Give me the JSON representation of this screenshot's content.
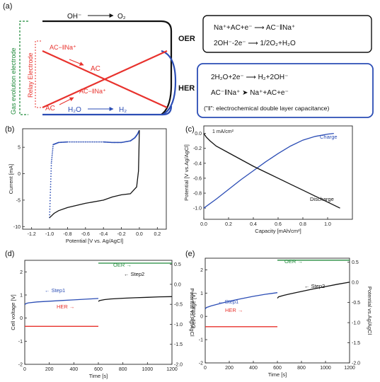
{
  "figure": {
    "panel_labels": [
      "(a)",
      "(b)",
      "(c)",
      "(d)",
      "(e)"
    ]
  },
  "schematic": {
    "gas_evolution_label": "Gas evolution electrode",
    "relay_label": "Relay Electrode",
    "top_reaction_left": "OH⁻",
    "top_reaction_right": "O₂",
    "ac_na_label": "AC−‖Na⁺",
    "ac_label_upper": "AC",
    "ac_label_lower": "AC",
    "ac_na_label_lower": "AC−‖Na⁺",
    "water_label": "H₂O",
    "h2_label": "H₂",
    "oer_label": "OER",
    "her_label": "HER",
    "oer_eq1": "Na⁺+AC+e⁻ ⟶ AC⁻‖Na⁺",
    "oer_eq2": "2OH⁻-2e⁻  ⟶  1/2O₂+H₂O",
    "her_eq1": "2H₂O+2e⁻  ⟶  H₂+2OH⁻",
    "her_eq2": "AC⁻‖Na⁺   ➤   Na⁺+AC+e⁻",
    "her_note": "(\"‖\": electrochemical double layer capacitance)",
    "colors": {
      "red": "#e8322d",
      "blue": "#2b4db5",
      "green": "#1f8a3a",
      "black": "#111111"
    }
  },
  "chart_data": [
    {
      "panel": "b",
      "type": "line",
      "xlabel": "Potential [V vs. Ag/AgCl]",
      "ylabel": "Current [mA]",
      "xlim": [
        -1.3,
        0.3
      ],
      "ylim": [
        -10.5,
        8.5
      ],
      "xticks": [
        "-1.2",
        "-1.0",
        "-0.8",
        "-0.6",
        "-0.4",
        "-0.2",
        "0.0",
        "0.2"
      ],
      "xtick_values": [
        -1.2,
        -1.0,
        -0.8,
        -0.6,
        -0.4,
        -0.2,
        0.0,
        0.2
      ],
      "yticks": [
        "-10",
        "-5",
        "0",
        "5"
      ],
      "ytick_values": [
        -10,
        -5,
        0,
        5
      ],
      "series": [
        {
          "color": "#2b4db5",
          "dotted": true,
          "x": [
            -1.0,
            -0.99,
            -0.98,
            -0.96,
            -0.9,
            -0.8,
            -0.6,
            -0.4,
            -0.3,
            -0.2,
            -0.1,
            -0.05,
            -0.02,
            0.0
          ],
          "y": [
            -8.3,
            -3.0,
            2.0,
            5.5,
            5.9,
            6.0,
            6.0,
            6.0,
            5.9,
            5.9,
            6.2,
            6.8,
            7.5,
            8.2
          ]
        },
        {
          "color": "#111111",
          "dotted": false,
          "x": [
            0.0,
            -0.005,
            -0.01,
            -0.03,
            -0.1,
            -0.2,
            -0.3,
            -0.4,
            -0.6,
            -0.8,
            -0.9,
            -0.95,
            -0.98,
            -1.0
          ],
          "y": [
            8.2,
            4.0,
            0.5,
            -2.5,
            -3.8,
            -4.0,
            -4.4,
            -5.0,
            -5.6,
            -6.4,
            -7.0,
            -7.5,
            -8.0,
            -8.3
          ]
        }
      ]
    },
    {
      "panel": "c",
      "type": "line",
      "annotation": "1 mA/cm²",
      "xlabel": "Capacity [mAh/cm²]",
      "ylabel": "Potential [V vs.Ag/AgCl]",
      "xlim": [
        0.0,
        1.2
      ],
      "ylim": [
        -1.15,
        0.1
      ],
      "xticks": [
        "0.0",
        "0.2",
        "0.4",
        "0.6",
        "0.8",
        "1.0"
      ],
      "xtick_values": [
        0.0,
        0.2,
        0.4,
        0.6,
        0.8,
        1.0
      ],
      "yticks": [
        "-1.0",
        "-0.8",
        "-0.6",
        "-0.4",
        "-0.2",
        "0.0"
      ],
      "ytick_values": [
        -1.0,
        -0.8,
        -0.6,
        -0.4,
        -0.2,
        0.0
      ],
      "series": [
        {
          "name": "Charge",
          "color": "#2b4db5",
          "x": [
            0.0,
            0.1,
            0.2,
            0.3,
            0.4,
            0.5,
            0.6,
            0.7,
            0.8,
            0.9,
            1.0,
            1.05
          ],
          "y": [
            -1.0,
            -0.88,
            -0.75,
            -0.62,
            -0.5,
            -0.38,
            -0.27,
            -0.17,
            -0.09,
            -0.04,
            -0.01,
            0.0
          ]
        },
        {
          "name": "Discharge",
          "color": "#111111",
          "x": [
            0.0,
            0.02,
            0.05,
            0.1,
            0.2,
            0.3,
            0.4,
            0.5,
            0.6,
            0.7,
            0.8,
            0.9,
            1.0,
            1.1
          ],
          "y": [
            0.0,
            -0.05,
            -0.1,
            -0.17,
            -0.26,
            -0.35,
            -0.44,
            -0.52,
            -0.6,
            -0.68,
            -0.76,
            -0.84,
            -0.92,
            -1.0
          ]
        }
      ]
    },
    {
      "panel": "d",
      "type": "line",
      "xlabel": "Time [s]",
      "ylabel": "Cell voltage [V]",
      "ylabel_right": "Potential vs.Ag/AgCl",
      "xlim": [
        0,
        1200
      ],
      "ylim": [
        -2.0,
        2.5
      ],
      "ylim_right": [
        -2.0,
        0.6
      ],
      "xticks": [
        "0",
        "200",
        "400",
        "600",
        "800",
        "1000",
        "1200"
      ],
      "xtick_values": [
        0,
        200,
        400,
        600,
        800,
        1000,
        1200
      ],
      "yticks": [
        "-2",
        "-1",
        "0",
        "1",
        "2"
      ],
      "ytick_values": [
        -2,
        -1,
        0,
        1,
        2
      ],
      "yticks_right": [
        "-2.0",
        "-1.5",
        "-1.0",
        "-0.5",
        "0.0",
        "0.5"
      ],
      "ytick_values_right": [
        -2.0,
        -1.5,
        -1.0,
        -0.5,
        0.0,
        0.5
      ],
      "annotations": [
        {
          "text": "OER →",
          "color": "#1f8a3a"
        },
        {
          "text": "← Step1",
          "color": "#2b4db5"
        },
        {
          "text": "← Step2",
          "color": "#111111"
        },
        {
          "text": "HER →",
          "color": "#e8322d"
        }
      ],
      "series": [
        {
          "color": "#2b4db5",
          "axis": "left",
          "x": [
            0,
            10,
            30,
            100,
            200,
            300,
            400,
            500,
            600
          ],
          "y": [
            0.58,
            0.63,
            0.66,
            0.7,
            0.73,
            0.76,
            0.79,
            0.82,
            0.85
          ]
        },
        {
          "color": "#111111",
          "axis": "left",
          "x": [
            600,
            610,
            650,
            700,
            800,
            900,
            1000,
            1100,
            1200
          ],
          "y": [
            0.72,
            0.76,
            0.8,
            0.83,
            0.86,
            0.88,
            0.9,
            0.92,
            0.93
          ]
        },
        {
          "color": "#1f8a3a",
          "axis": "right",
          "x": [
            600,
            1200
          ],
          "y": [
            0.53,
            0.53
          ]
        },
        {
          "color": "#e8322d",
          "axis": "right",
          "x": [
            0,
            600
          ],
          "y": [
            -1.05,
            -1.05
          ]
        }
      ]
    },
    {
      "panel": "e",
      "type": "line",
      "xlabel": "Time [s]",
      "ylabel": "Cell voltage [V]",
      "ylabel_right": "Potential vs.Ag/AgCl",
      "xlim": [
        0,
        1200
      ],
      "ylim": [
        -2.0,
        2.5
      ],
      "ylim_right": [
        -2.0,
        0.6
      ],
      "xticks": [
        "0",
        "200",
        "400",
        "600",
        "800",
        "1000",
        "1200"
      ],
      "xtick_values": [
        0,
        200,
        400,
        600,
        800,
        1000,
        1200
      ],
      "yticks": [
        "-2",
        "-1",
        "0",
        "1",
        "2"
      ],
      "ytick_values": [
        -2,
        -1,
        0,
        1,
        2
      ],
      "yticks_right": [
        "-2.0",
        "-1.5",
        "-1.0",
        "-0.5",
        "0.0",
        "0.5"
      ],
      "ytick_values_right": [
        -2.0,
        -1.5,
        -1.0,
        -0.5,
        0.0,
        0.5
      ],
      "annotations": [
        {
          "text": "OER →",
          "color": "#1f8a3a"
        },
        {
          "text": "← Step1",
          "color": "#2b4db5"
        },
        {
          "text": "← Step2",
          "color": "#111111"
        },
        {
          "text": "HER →",
          "color": "#e8322d"
        }
      ],
      "series": [
        {
          "color": "#2b4db5",
          "axis": "left",
          "x": [
            0,
            10,
            50,
            100,
            200,
            300,
            400,
            500,
            600
          ],
          "y": [
            0.32,
            0.38,
            0.45,
            0.52,
            0.65,
            0.76,
            0.86,
            0.95,
            1.02
          ]
        },
        {
          "color": "#111111",
          "axis": "left",
          "x": [
            600,
            610,
            650,
            700,
            800,
            900,
            1000,
            1100,
            1200
          ],
          "y": [
            0.78,
            0.84,
            0.9,
            0.96,
            1.07,
            1.18,
            1.28,
            1.38,
            1.47
          ]
        },
        {
          "color": "#1f8a3a",
          "axis": "right",
          "x": [
            600,
            1200
          ],
          "y": [
            0.55,
            0.55
          ]
        },
        {
          "color": "#e8322d",
          "axis": "right",
          "x": [
            0,
            600
          ],
          "y": [
            -1.1,
            -1.1
          ]
        }
      ]
    }
  ]
}
